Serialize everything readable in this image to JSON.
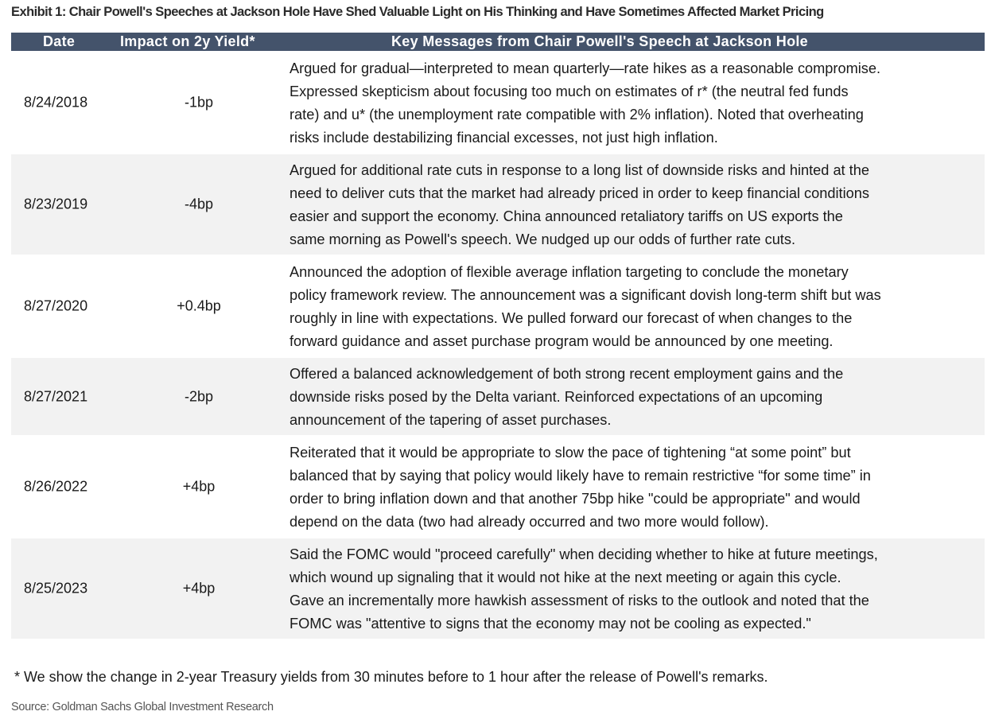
{
  "title": "Exhibit 1: Chair Powell's Speeches at Jackson Hole Have Shed Valuable Light on His Thinking and Have Sometimes Affected Market Pricing",
  "colors": {
    "header_bg": "#44536b",
    "alt_row_bg": "#f2f2f2"
  },
  "table": {
    "headers": [
      "Date",
      "Impact on 2y Yield*",
      "Key Messages from Chair Powell's Speech at Jackson Hole"
    ],
    "rows": [
      {
        "date": "8/24/2018",
        "impact": "-1bp",
        "lines": [
          "Argued for gradual—interpreted to mean quarterly—rate hikes as a reasonable compromise.",
          "Expressed skepticism about focusing too much on estimates of r* (the neutral fed funds",
          "rate) and u* (the unemployment rate compatible with 2% inflation).  Noted that overheating",
          "risks include destabilizing financial excesses, not just high inflation."
        ]
      },
      {
        "date": "8/23/2019",
        "impact": "-4bp",
        "lines": [
          "Argued for additional rate cuts in response to a long list of downside risks and hinted at the",
          "need to deliver cuts that the market had already priced in order to keep financial conditions",
          "easier and support the economy.  China announced retaliatory tariffs on US exports the",
          "same morning as Powell's speech.  We nudged up our odds of further rate cuts."
        ]
      },
      {
        "date": "8/27/2020",
        "impact": "+0.4bp",
        "lines": [
          "Announced the adoption of flexible average inflation targeting to conclude the monetary",
          "policy framework review.  The announcement was a significant dovish long-term shift but was",
          "roughly in line with expectations.  We pulled forward our forecast of when changes to the",
          "forward guidance and asset purchase program would be announced by one meeting."
        ]
      },
      {
        "date": "8/27/2021",
        "impact": "-2bp",
        "lines": [
          "Offered a balanced acknowledgement of both strong recent employment gains and the",
          "downside risks posed by the Delta variant.  Reinforced expectations of an upcoming",
          "announcement of the tapering of asset purchases."
        ]
      },
      {
        "date": "8/26/2022",
        "impact": "+4bp",
        "lines": [
          "Reiterated that it would be appropriate to slow the pace of tightening “at some point” but",
          "balanced that by saying that policy would likely have to remain restrictive “for some time” in",
          "order to bring inflation down and that another 75bp hike \"could be appropriate\" and would",
          "depend on the data (two had already occurred and two more would follow)."
        ]
      },
      {
        "date": "8/25/2023",
        "impact": "+4bp",
        "lines": [
          "Said the FOMC would \"proceed carefully\" when deciding whether to hike at future meetings,",
          "which wound up signaling that it would not hike at the next meeting or again this cycle.",
          "Gave an incrementally more hawkish assessment of risks to the outlook and noted that the",
          "FOMC was \"attentive to signs that the economy may not be cooling as expected.\""
        ]
      }
    ]
  },
  "footnote": "* We show the change in 2-year Treasury yields from 30 minutes before to 1 hour after the release of Powell's remarks.",
  "source": "Source: Goldman Sachs Global Investment Research"
}
